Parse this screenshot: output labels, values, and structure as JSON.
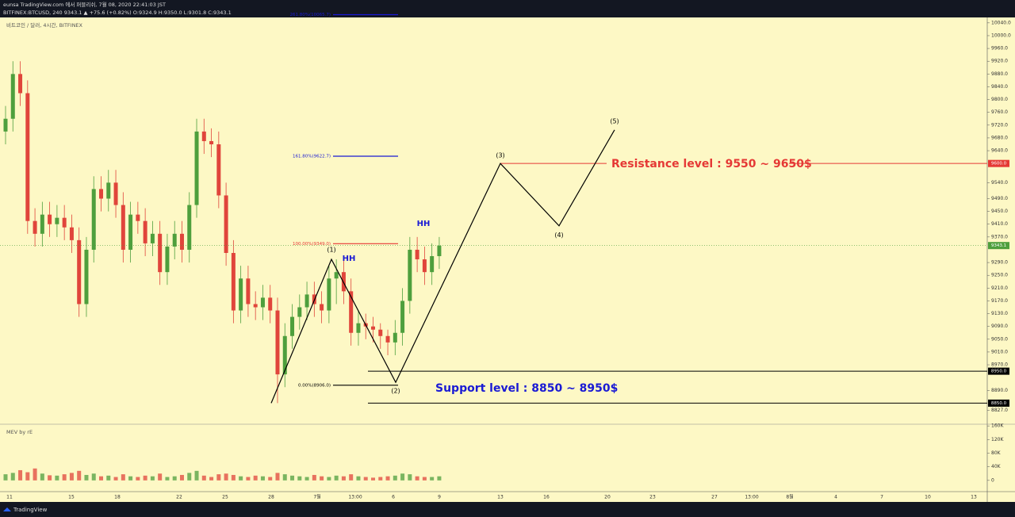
{
  "header": {
    "line1": "eunsa TradingView.com 에서 퍼블리쉬, 7월 08, 2020 22:41:03 JST",
    "line2": "BITFINEX:BTCUSD, 240 9343.1 ▲ +75.6 (+0.82%) O:9324.9 H:9350.0 L:9301.8 C:9343.1"
  },
  "chart_data": {
    "type": "candlestick",
    "title": "비트코인 / 달러, 4시간, BITFINEX",
    "open": [
      9700,
      9740,
      9880,
      9820,
      9420,
      9380,
      9440,
      9410,
      9430,
      9400,
      9360,
      9160,
      9330,
      9520,
      9490,
      9540,
      9470,
      9330,
      9440,
      9420,
      9350,
      9380,
      9260,
      9340,
      9380,
      9330,
      9470,
      9700,
      9670,
      9660,
      9500,
      9320,
      9140,
      9240,
      9160,
      9150,
      9180,
      9140,
      8940,
      9060,
      9120,
      9150,
      9190,
      9160,
      9140,
      9240,
      9260,
      9200,
      9070,
      9100,
      9090,
      9080,
      9060,
      9040,
      9070,
      9170,
      9330,
      9300,
      9260,
      9310
    ],
    "high": [
      9780,
      9920,
      9920,
      9860,
      9460,
      9480,
      9480,
      9470,
      9470,
      9440,
      9400,
      9370,
      9560,
      9560,
      9580,
      9580,
      9510,
      9480,
      9480,
      9460,
      9420,
      9420,
      9380,
      9420,
      9420,
      9510,
      9740,
      9740,
      9710,
      9700,
      9540,
      9360,
      9280,
      9280,
      9200,
      9220,
      9220,
      9180,
      9100,
      9160,
      9190,
      9230,
      9230,
      9200,
      9280,
      9300,
      9300,
      9240,
      9140,
      9130,
      9120,
      9100,
      9080,
      9110,
      9210,
      9370,
      9370,
      9340,
      9350,
      9370
    ],
    "low": [
      9660,
      9700,
      9780,
      9380,
      9340,
      9340,
      9370,
      9370,
      9360,
      9320,
      9120,
      9120,
      9290,
      9450,
      9450,
      9430,
      9290,
      9290,
      9380,
      9310,
      9310,
      9220,
      9220,
      9300,
      9290,
      9290,
      9430,
      9630,
      9620,
      9460,
      9280,
      9100,
      9100,
      9120,
      9110,
      9110,
      9100,
      8850,
      8900,
      9020,
      9080,
      9110,
      9120,
      9100,
      9100,
      9160,
      9160,
      9030,
      9030,
      9050,
      9040,
      9020,
      9000,
      9000,
      9030,
      9130,
      9260,
      9220,
      9220,
      9270
    ],
    "close": [
      9740,
      9880,
      9820,
      9420,
      9380,
      9440,
      9410,
      9430,
      9400,
      9360,
      9160,
      9330,
      9520,
      9490,
      9540,
      9470,
      9330,
      9440,
      9420,
      9350,
      9380,
      9260,
      9340,
      9380,
      9330,
      9470,
      9700,
      9670,
      9660,
      9500,
      9320,
      9140,
      9240,
      9160,
      9150,
      9180,
      9140,
      8940,
      9060,
      9120,
      9150,
      9190,
      9160,
      9140,
      9240,
      9260,
      9200,
      9070,
      9100,
      9090,
      9080,
      9060,
      9040,
      9070,
      9170,
      9330,
      9300,
      9260,
      9310,
      9343.1
    ],
    "up_color": "#4e9f3d",
    "down_color": "#e0453b",
    "ylim": [
      8784,
      10057
    ],
    "yticks": [
      {
        "value": 10040,
        "label": "10040.0"
      },
      {
        "value": 10000,
        "label": "10000.0"
      },
      {
        "value": 9960,
        "label": "9960.0"
      },
      {
        "value": 9920,
        "label": "9920.0"
      },
      {
        "value": 9880,
        "label": "9880.0"
      },
      {
        "value": 9840,
        "label": "9840.0"
      },
      {
        "value": 9800,
        "label": "9800.0"
      },
      {
        "value": 9760,
        "label": "9760.0"
      },
      {
        "value": 9720,
        "label": "9720.0"
      },
      {
        "value": 9680,
        "label": "9680.0"
      },
      {
        "value": 9640,
        "label": "9640.0"
      },
      {
        "value": 9540,
        "label": "9540.0"
      },
      {
        "value": 9490,
        "label": "9490.0"
      },
      {
        "value": 9450,
        "label": "9450.0"
      },
      {
        "value": 9410,
        "label": "9410.0"
      },
      {
        "value": 9370,
        "label": "9370.0"
      },
      {
        "value": 9290,
        "label": "9290.0"
      },
      {
        "value": 9250,
        "label": "9250.0"
      },
      {
        "value": 9210,
        "label": "9210.0"
      },
      {
        "value": 9170,
        "label": "9170.0"
      },
      {
        "value": 9130,
        "label": "9130.0"
      },
      {
        "value": 9090,
        "label": "9090.0"
      },
      {
        "value": 9050,
        "label": "9050.0"
      },
      {
        "value": 9010,
        "label": "9010.0"
      },
      {
        "value": 8970,
        "label": "8970.0"
      },
      {
        "value": 8890,
        "label": "8890.0"
      },
      {
        "value": 8827,
        "label": "8827.0"
      }
    ],
    "xtick_labels": [
      "11",
      "15",
      "18",
      "22",
      "25",
      "28",
      "7월",
      "13:00",
      "6",
      "9",
      "13",
      "16",
      "20",
      "23",
      "27",
      "13:00",
      "8월",
      "4",
      "7",
      "10",
      "13"
    ]
  },
  "volume": {
    "title": "MEV by rE",
    "values": [
      18000,
      22000,
      30000,
      24000,
      35000,
      20000,
      15000,
      14000,
      18000,
      22000,
      28000,
      16000,
      20000,
      12000,
      14000,
      10000,
      18000,
      12000,
      10000,
      14000,
      12000,
      20000,
      10000,
      12000,
      16000,
      22000,
      28000,
      14000,
      10000,
      18000,
      20000,
      16000,
      12000,
      10000,
      14000,
      12000,
      10000,
      22000,
      18000,
      14000,
      12000,
      10000,
      16000,
      12000,
      10000,
      14000,
      12000,
      18000,
      12000,
      10000,
      8000,
      10000,
      12000,
      14000,
      20000,
      18000,
      12000,
      10000,
      10000,
      12000
    ],
    "ylim": [
      -33000,
      165000
    ],
    "yticks": [
      0,
      {
        "value": 40000,
        "label": "40K"
      },
      {
        "value": 80000,
        "label": "80K"
      },
      {
        "value": 120000,
        "label": "120K"
      },
      {
        "value": 160000,
        "label": "160K"
      }
    ]
  },
  "fib_levels": [
    {
      "label": "261.80%(10065.7)",
      "value": 10065.7,
      "color": "#1a1ad4"
    },
    {
      "label": "161.80%(9622.7)",
      "value": 9622.7,
      "color": "#1a1ad4"
    },
    {
      "label": "100.00%(9349.0)",
      "value": 9349.0,
      "color": "#e53935"
    },
    {
      "label": "0.00%(8906.0)",
      "value": 8906.0,
      "color": "#000000"
    }
  ],
  "levels": [
    {
      "value": 9600,
      "label": "9600.0",
      "color": "#e53935"
    },
    {
      "value": 9343.1,
      "label": "9343.1",
      "color": "#4e9f3d"
    },
    {
      "value": 8950,
      "label": "8950.0",
      "color": "#000000"
    },
    {
      "value": 8850,
      "label": "8850.0",
      "color": "#000000"
    }
  ],
  "annotations": {
    "resistance": "Resistance level : 9550 ~ 9650$",
    "support": "Support level : 8850 ~ 8950$",
    "hh": [
      "HH",
      "HH"
    ]
  },
  "wave": {
    "labels": [
      null,
      "(1)",
      "(2)",
      "(3)",
      "(4)",
      "(5)"
    ],
    "values": [
      8850,
      9300,
      8915,
      9600,
      9405,
      9705
    ]
  },
  "footer": "TradingView"
}
